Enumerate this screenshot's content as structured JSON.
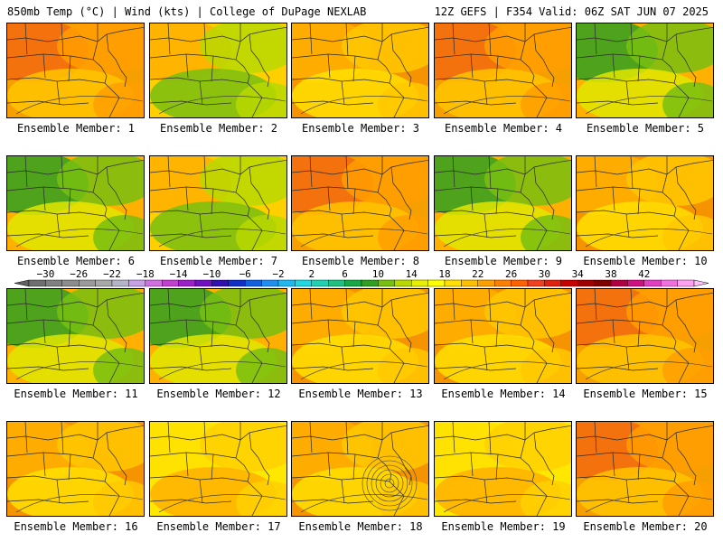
{
  "header": {
    "left": "850mb Temp (°C) | Wind (kts) | College of DuPage NEXLAB",
    "right": "12Z GEFS | F354 Valid: 06Z SAT JUN 07 2025"
  },
  "members": [
    {
      "label": "Ensemble Member: 1",
      "palette": "hot"
    },
    {
      "label": "Ensemble Member: 2",
      "palette": "warm-green"
    },
    {
      "label": "Ensemble Member: 3",
      "palette": "warm"
    },
    {
      "label": "Ensemble Member: 4",
      "palette": "hot"
    },
    {
      "label": "Ensemble Member: 5",
      "palette": "cool"
    },
    {
      "label": "Ensemble Member: 6",
      "palette": "cool"
    },
    {
      "label": "Ensemble Member: 7",
      "palette": "warm-green"
    },
    {
      "label": "Ensemble Member: 8",
      "palette": "hot"
    },
    {
      "label": "Ensemble Member: 9",
      "palette": "cool"
    },
    {
      "label": "Ensemble Member: 10",
      "palette": "warm"
    },
    {
      "label": "Ensemble Member: 11",
      "palette": "cool"
    },
    {
      "label": "Ensemble Member: 12",
      "palette": "cool"
    },
    {
      "label": "Ensemble Member: 13",
      "palette": "warm"
    },
    {
      "label": "Ensemble Member: 14",
      "palette": "warm"
    },
    {
      "label": "Ensemble Member: 15",
      "palette": "hot"
    },
    {
      "label": "Ensemble Member: 16",
      "palette": "warm"
    },
    {
      "label": "Ensemble Member: 17",
      "palette": "yellow"
    },
    {
      "label": "Ensemble Member: 18",
      "palette": "warm"
    },
    {
      "label": "Ensemble Member: 19",
      "palette": "yellow"
    },
    {
      "label": "Ensemble Member: 20",
      "palette": "hot"
    }
  ],
  "colorbar": {
    "labels": [
      "−30",
      "−26",
      "−22",
      "−18",
      "−14",
      "−10",
      "−6",
      "−2",
      "2",
      "6",
      "10",
      "14",
      "18",
      "22",
      "26",
      "30",
      "34",
      "38",
      "42"
    ],
    "colors": [
      "#6e6e6e",
      "#808080",
      "#8c8c8c",
      "#9a9a9a",
      "#a8a8a8",
      "#b4b4c8",
      "#c8a0e6",
      "#d070e0",
      "#c040d0",
      "#9c20c8",
      "#7010c0",
      "#3010b0",
      "#1030c8",
      "#1060e0",
      "#2090f0",
      "#20b8f0",
      "#20d8e0",
      "#20d0b0",
      "#20c080",
      "#18a848",
      "#30a020",
      "#78c010",
      "#b8d800",
      "#e8f000",
      "#ffff00",
      "#ffe000",
      "#ffc000",
      "#ffa000",
      "#ff8000",
      "#ff6000",
      "#f04020",
      "#e02010",
      "#c80000",
      "#a00000",
      "#800000",
      "#b00040",
      "#d01080",
      "#e040c0",
      "#f070e0",
      "#ffa0f0"
    ]
  },
  "colors": {
    "hot": [
      "#f26a10",
      "#ff9e00",
      "#ffc400",
      "#f5a000"
    ],
    "warm": [
      "#ffb000",
      "#ffc800",
      "#ffe000",
      "#f59400"
    ],
    "warm-green": [
      "#ffb000",
      "#b8d800",
      "#78c010",
      "#ffd000"
    ],
    "cool": [
      "#30a020",
      "#78c010",
      "#e0e800",
      "#ffb000"
    ],
    "yellow": [
      "#ffe000",
      "#ffd000",
      "#ffb000",
      "#ffe800"
    ]
  }
}
